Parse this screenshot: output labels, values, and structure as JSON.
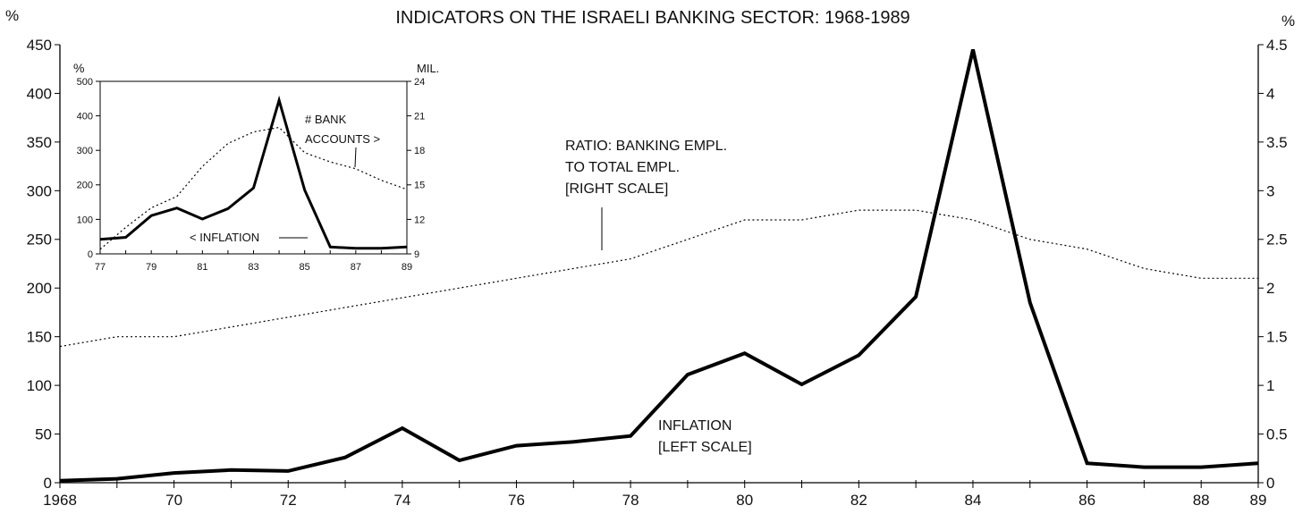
{
  "chart_data": [
    {
      "type": "line",
      "title": "INDICATORS ON THE ISRAELI BANKING SECTOR:  1968-1989",
      "left_unit": "%",
      "right_unit": "%",
      "x_tick_labels": [
        "1968",
        "70",
        "72",
        "74",
        "76",
        "78",
        "80",
        "82",
        "84",
        "86",
        "88",
        "89"
      ],
      "y_left_tick_labels": [
        "0",
        "50",
        "100",
        "150",
        "200",
        "250",
        "300",
        "350",
        "400",
        "450"
      ],
      "y_right_tick_labels": [
        "0",
        "0.5",
        "1",
        "1.5",
        "2",
        "2.5",
        "3",
        "3.5",
        "4",
        "4.5"
      ],
      "xlim": [
        1968,
        1989
      ],
      "ylim_left": [
        0,
        450
      ],
      "ylim_right": [
        0,
        4.5
      ],
      "grid": false,
      "x": [
        1968,
        1969,
        1970,
        1971,
        1972,
        1973,
        1974,
        1975,
        1976,
        1977,
        1978,
        1979,
        1980,
        1981,
        1982,
        1983,
        1984,
        1985,
        1986,
        1987,
        1988,
        1989
      ],
      "series": [
        {
          "name": "INFLATION",
          "axis": "left",
          "style": "solid-thick",
          "color": "#000000",
          "label_lines": [
            "INFLATION",
            "[LEFT SCALE]"
          ],
          "values": [
            2,
            4,
            10,
            13,
            12,
            26,
            56,
            23,
            38,
            42,
            48,
            111,
            133,
            101,
            131,
            191,
            445,
            185,
            20,
            16,
            16,
            20
          ]
        },
        {
          "name": "RATIO: BANKING EMPL. TO TOTAL EMPL.",
          "axis": "right",
          "style": "dotted",
          "color": "#000000",
          "label_lines": [
            "RATIO: BANKING EMPL.",
            "TO TOTAL EMPL.",
            "[RIGHT SCALE]"
          ],
          "values": [
            1.4,
            1.5,
            1.5,
            1.6,
            1.7,
            1.8,
            1.9,
            2.0,
            2.1,
            2.2,
            2.3,
            2.5,
            2.7,
            2.7,
            2.8,
            2.8,
            2.7,
            2.5,
            2.4,
            2.2,
            2.1,
            2.1
          ]
        }
      ]
    },
    {
      "type": "line",
      "title": "",
      "left_unit": "%",
      "right_unit": "MIL.",
      "x_tick_labels": [
        "77",
        "79",
        "81",
        "83",
        "85",
        "87",
        "89"
      ],
      "y_left_tick_labels": [
        "0",
        "100",
        "200",
        "300",
        "400",
        "500"
      ],
      "y_right_tick_labels": [
        "9",
        "12",
        "15",
        "18",
        "21",
        "24"
      ],
      "xlim": [
        1977,
        1989
      ],
      "ylim_left": [
        0,
        500
      ],
      "ylim_right": [
        9,
        24
      ],
      "grid": false,
      "x": [
        1977,
        1978,
        1979,
        1980,
        1981,
        1982,
        1983,
        1984,
        1985,
        1986,
        1987,
        1988,
        1989
      ],
      "series": [
        {
          "name": "INFLATION",
          "axis": "left",
          "style": "solid-thick",
          "color": "#000000",
          "label_lines": [
            "< INFLATION"
          ],
          "values": [
            42,
            48,
            111,
            133,
            101,
            131,
            191,
            445,
            185,
            20,
            16,
            16,
            20
          ]
        },
        {
          "name": "# BANK ACCOUNTS",
          "axis": "right",
          "style": "dotted",
          "color": "#000000",
          "label_lines": [
            "# BANK",
            "ACCOUNTS >"
          ],
          "values": [
            9.4,
            11.3,
            13.0,
            14.0,
            16.6,
            18.6,
            19.6,
            20.0,
            17.8,
            17.0,
            16.4,
            15.4,
            14.6
          ]
        }
      ]
    }
  ]
}
